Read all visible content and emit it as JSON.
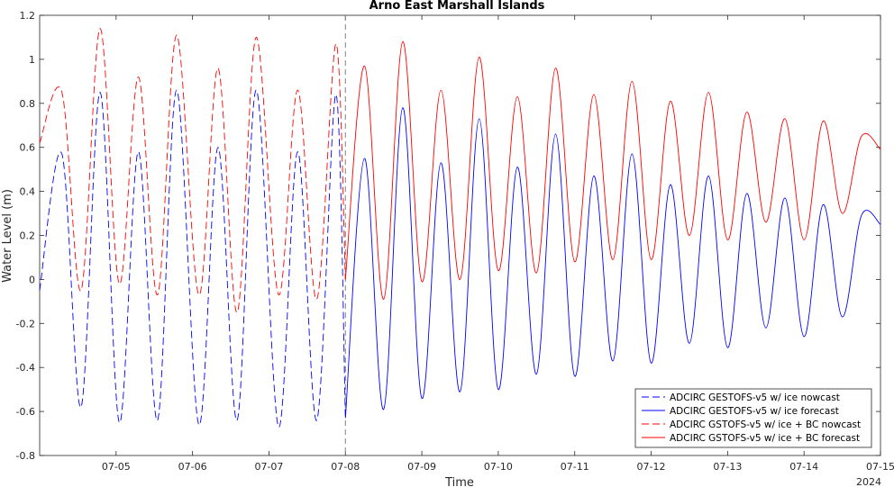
{
  "chart_data": {
    "type": "line",
    "title": "Arno East Marshall Islands",
    "xlabel": "Time",
    "ylabel": "Water Level (m)",
    "year_label": "2024",
    "x_units": "days (July 2024)",
    "xlim": [
      "2024-07-04",
      "2024-07-15"
    ],
    "ylim": [
      -0.8,
      1.2
    ],
    "y_ticks": [
      "-0.8",
      "-0.6",
      "-0.4",
      "-0.2",
      "0",
      "0.2",
      "0.4",
      "0.6",
      "0.8",
      "1",
      "1.2"
    ],
    "x_ticks": [
      {
        "date": "2024-07-05",
        "label": "07-05"
      },
      {
        "date": "2024-07-06",
        "label": "07-06"
      },
      {
        "date": "2024-07-07",
        "label": "07-07"
      },
      {
        "date": "2024-07-08",
        "label": "07-08"
      },
      {
        "date": "2024-07-09",
        "label": "07-09"
      },
      {
        "date": "2024-07-10",
        "label": "07-10"
      },
      {
        "date": "2024-07-11",
        "label": "07-11"
      },
      {
        "date": "2024-07-12",
        "label": "07-12"
      },
      {
        "date": "2024-07-13",
        "label": "07-13"
      },
      {
        "date": "2024-07-14",
        "label": "07-14"
      },
      {
        "date": "2024-07-15",
        "label": "07-15"
      }
    ],
    "grid": false,
    "nowcast_forecast_divider": "2024-07-08",
    "legend_position": "bottom-right",
    "series": [
      {
        "name": "ADCIRC GESTOFS-v5 w/ ice nowcast",
        "color": "#0000ff",
        "dash": true,
        "points": [
          [
            "2024-07-04 00:00",
            -0.05
          ],
          [
            "2024-07-04 07:00",
            0.57
          ],
          [
            "2024-07-04 13:00",
            -0.58
          ],
          [
            "2024-07-04 19:00",
            0.85
          ],
          [
            "2024-07-05 01:00",
            -0.65
          ],
          [
            "2024-07-05 07:00",
            0.58
          ],
          [
            "2024-07-05 13:00",
            -0.64
          ],
          [
            "2024-07-05 19:00",
            0.86
          ],
          [
            "2024-07-06 02:00",
            -0.66
          ],
          [
            "2024-07-06 08:00",
            0.6
          ],
          [
            "2024-07-06 14:00",
            -0.64
          ],
          [
            "2024-07-06 20:00",
            0.86
          ],
          [
            "2024-07-07 03:00",
            -0.67
          ],
          [
            "2024-07-07 09:00",
            0.58
          ],
          [
            "2024-07-07 15:00",
            -0.64
          ],
          [
            "2024-07-07 21:00",
            0.84
          ],
          [
            "2024-07-08 00:00",
            -0.63
          ]
        ]
      },
      {
        "name": "ADCIRC GESTOFS-v5 w/ ice forecast",
        "color": "#0000ff",
        "dash": false,
        "points": [
          [
            "2024-07-08 00:00",
            -0.63
          ],
          [
            "2024-07-08 06:00",
            0.55
          ],
          [
            "2024-07-08 12:00",
            -0.59
          ],
          [
            "2024-07-08 18:00",
            0.78
          ],
          [
            "2024-07-09 00:00",
            -0.54
          ],
          [
            "2024-07-09 06:00",
            0.53
          ],
          [
            "2024-07-09 12:00",
            -0.51
          ],
          [
            "2024-07-09 18:00",
            0.73
          ],
          [
            "2024-07-10 00:00",
            -0.5
          ],
          [
            "2024-07-10 06:00",
            0.51
          ],
          [
            "2024-07-10 12:00",
            -0.43
          ],
          [
            "2024-07-10 18:00",
            0.66
          ],
          [
            "2024-07-11 00:00",
            -0.44
          ],
          [
            "2024-07-11 06:00",
            0.47
          ],
          [
            "2024-07-11 12:00",
            -0.37
          ],
          [
            "2024-07-11 18:00",
            0.57
          ],
          [
            "2024-07-12 00:00",
            -0.38
          ],
          [
            "2024-07-12 06:00",
            0.43
          ],
          [
            "2024-07-12 12:00",
            -0.29
          ],
          [
            "2024-07-12 18:00",
            0.47
          ],
          [
            "2024-07-13 00:00",
            -0.31
          ],
          [
            "2024-07-13 06:00",
            0.39
          ],
          [
            "2024-07-13 12:00",
            -0.22
          ],
          [
            "2024-07-13 18:00",
            0.37
          ],
          [
            "2024-07-14 00:00",
            -0.26
          ],
          [
            "2024-07-14 06:00",
            0.34
          ],
          [
            "2024-07-14 12:00",
            -0.17
          ],
          [
            "2024-07-14 18:00",
            0.29
          ],
          [
            "2024-07-15 00:00",
            0.25
          ]
        ]
      },
      {
        "name": "ADCIRC GSTOFS-v5 w/ ice + BC nowcast",
        "color": "#ff0000",
        "dash": true,
        "points": [
          [
            "2024-07-04 00:00",
            0.62
          ],
          [
            "2024-07-04 07:00",
            0.85
          ],
          [
            "2024-07-04 13:00",
            -0.05
          ],
          [
            "2024-07-04 19:00",
            1.14
          ],
          [
            "2024-07-05 01:00",
            -0.02
          ],
          [
            "2024-07-05 07:00",
            0.92
          ],
          [
            "2024-07-05 13:00",
            -0.07
          ],
          [
            "2024-07-05 19:00",
            1.11
          ],
          [
            "2024-07-06 02:00",
            -0.07
          ],
          [
            "2024-07-06 08:00",
            0.96
          ],
          [
            "2024-07-06 14:00",
            -0.15
          ],
          [
            "2024-07-06 20:00",
            1.1
          ],
          [
            "2024-07-07 03:00",
            -0.07
          ],
          [
            "2024-07-07 09:00",
            0.86
          ],
          [
            "2024-07-07 15:00",
            -0.09
          ],
          [
            "2024-07-07 21:00",
            1.07
          ],
          [
            "2024-07-08 00:00",
            0.0
          ]
        ]
      },
      {
        "name": "ADCIRC GSTOFS-v5 w/ ice + BC forecast",
        "color": "#ff0000",
        "dash": false,
        "points": [
          [
            "2024-07-08 00:00",
            0.0
          ],
          [
            "2024-07-08 06:00",
            0.97
          ],
          [
            "2024-07-08 12:00",
            -0.09
          ],
          [
            "2024-07-08 18:00",
            1.08
          ],
          [
            "2024-07-09 00:00",
            -0.01
          ],
          [
            "2024-07-09 06:00",
            0.86
          ],
          [
            "2024-07-09 12:00",
            0.0
          ],
          [
            "2024-07-09 18:00",
            1.01
          ],
          [
            "2024-07-10 00:00",
            0.04
          ],
          [
            "2024-07-10 06:00",
            0.83
          ],
          [
            "2024-07-10 12:00",
            0.03
          ],
          [
            "2024-07-10 18:00",
            0.96
          ],
          [
            "2024-07-11 00:00",
            0.08
          ],
          [
            "2024-07-11 06:00",
            0.84
          ],
          [
            "2024-07-11 12:00",
            0.09
          ],
          [
            "2024-07-11 18:00",
            0.9
          ],
          [
            "2024-07-12 00:00",
            0.09
          ],
          [
            "2024-07-12 06:00",
            0.81
          ],
          [
            "2024-07-12 12:00",
            0.2
          ],
          [
            "2024-07-12 18:00",
            0.85
          ],
          [
            "2024-07-13 00:00",
            0.18
          ],
          [
            "2024-07-13 06:00",
            0.76
          ],
          [
            "2024-07-13 12:00",
            0.26
          ],
          [
            "2024-07-13 18:00",
            0.73
          ],
          [
            "2024-07-14 00:00",
            0.18
          ],
          [
            "2024-07-14 06:00",
            0.72
          ],
          [
            "2024-07-14 12:00",
            0.3
          ],
          [
            "2024-07-14 18:00",
            0.65
          ],
          [
            "2024-07-15 00:00",
            0.59
          ]
        ]
      }
    ]
  }
}
